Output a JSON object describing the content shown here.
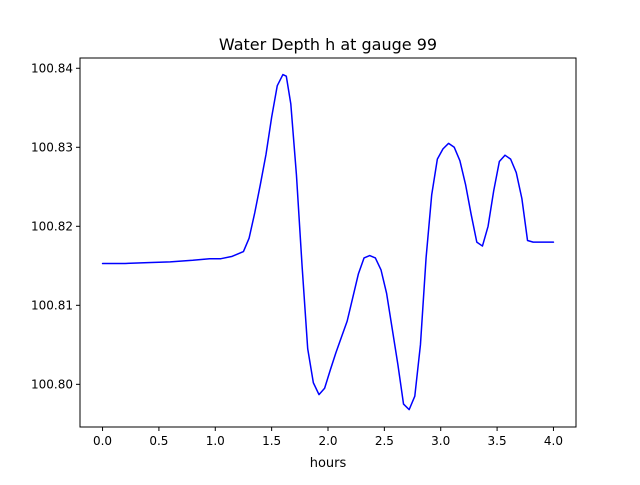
{
  "chart_data": {
    "type": "line",
    "title": "Water Depth h at gauge 99",
    "xlabel": "hours",
    "ylabel": "",
    "xlim": [
      -0.2,
      4.2
    ],
    "ylim": [
      100.7946,
      100.8413
    ],
    "xticks": [
      0.0,
      0.5,
      1.0,
      1.5,
      2.0,
      2.5,
      3.0,
      3.5,
      4.0
    ],
    "xtick_labels": [
      "0.0",
      "0.5",
      "1.0",
      "1.5",
      "2.0",
      "2.5",
      "3.0",
      "3.5",
      "4.0"
    ],
    "yticks": [
      100.8,
      100.81,
      100.82,
      100.83,
      100.84
    ],
    "ytick_labels": [
      "100.80",
      "100.81",
      "100.82",
      "100.83",
      "100.84"
    ],
    "grid": false,
    "colors": {
      "line": "#0000ff",
      "axes": "#000000",
      "background": "#ffffff"
    },
    "series": [
      {
        "name": "",
        "x": [
          0.0,
          0.2,
          0.4,
          0.6,
          0.8,
          0.95,
          1.05,
          1.15,
          1.25,
          1.3,
          1.35,
          1.4,
          1.45,
          1.5,
          1.55,
          1.6,
          1.63,
          1.67,
          1.72,
          1.77,
          1.82,
          1.87,
          1.92,
          1.97,
          2.02,
          2.07,
          2.12,
          2.17,
          2.22,
          2.27,
          2.32,
          2.37,
          2.42,
          2.47,
          2.52,
          2.57,
          2.62,
          2.67,
          2.72,
          2.77,
          2.82,
          2.87,
          2.92,
          2.97,
          3.02,
          3.07,
          3.12,
          3.17,
          3.22,
          3.27,
          3.32,
          3.37,
          3.42,
          3.47,
          3.52,
          3.57,
          3.62,
          3.67,
          3.72,
          3.77,
          3.82,
          3.87,
          3.92,
          3.97,
          4.0
        ],
        "y": [
          100.8153,
          100.8153,
          100.8154,
          100.8155,
          100.8157,
          100.8159,
          100.8159,
          100.8162,
          100.8168,
          100.8185,
          100.8217,
          100.8253,
          100.8291,
          100.8338,
          100.8378,
          100.8392,
          100.839,
          100.8355,
          100.8265,
          100.815,
          100.8045,
          100.8002,
          100.7987,
          100.7995,
          100.8018,
          100.804,
          100.806,
          100.808,
          100.811,
          100.814,
          100.816,
          100.8163,
          100.816,
          100.8145,
          100.8115,
          100.807,
          100.8025,
          100.7975,
          100.7968,
          100.7985,
          100.805,
          100.816,
          100.824,
          100.8285,
          100.8298,
          100.8305,
          100.83,
          100.8283,
          100.8253,
          100.8215,
          100.818,
          100.8175,
          100.82,
          100.8245,
          100.8282,
          100.829,
          100.8285,
          100.8268,
          100.8235,
          100.8182,
          100.818,
          100.818,
          100.818,
          100.818,
          100.818
        ]
      }
    ]
  }
}
